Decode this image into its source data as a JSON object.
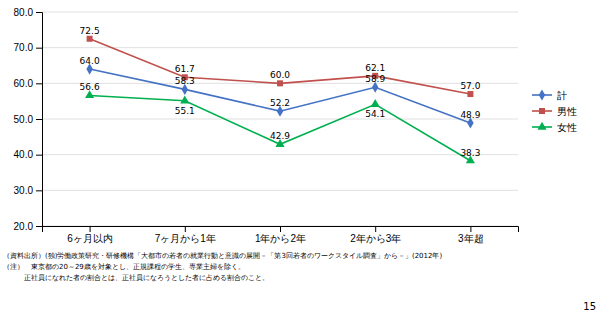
{
  "chart_data": {
    "type": "line",
    "categories": [
      "6ヶ月以内",
      "7ヶ月から1年",
      "1年から2年",
      "2年から3年",
      "3年超"
    ],
    "series": [
      {
        "name": "計",
        "color": "#4472c4",
        "marker": "diamond",
        "values": [
          64.0,
          58.3,
          52.2,
          58.9,
          48.9
        ],
        "value_labels": [
          "64.0",
          "58.3",
          "52.2",
          "58.9",
          "48.9"
        ]
      },
      {
        "name": "男性",
        "color": "#c0504d",
        "marker": "square",
        "values": [
          72.5,
          61.7,
          60.0,
          62.1,
          57.0
        ],
        "value_labels": [
          "72.5",
          "61.7",
          "60.0",
          "62.1",
          "57.0"
        ]
      },
      {
        "name": "女性",
        "color": "#00b050",
        "marker": "triangle",
        "values": [
          56.6,
          55.1,
          42.9,
          54.1,
          38.3
        ],
        "value_labels": [
          "56.6",
          "55.1",
          "42.9",
          "54.1",
          "38.3"
        ]
      }
    ],
    "ylim": [
      20.0,
      80.0
    ],
    "yticks": [
      {
        "value": 20,
        "label": "20.0"
      },
      {
        "value": 30,
        "label": "30.0"
      },
      {
        "value": 40,
        "label": "40.0"
      },
      {
        "value": 50,
        "label": "50.0"
      },
      {
        "value": 60,
        "label": "60.0"
      },
      {
        "value": 70,
        "label": "70.0"
      },
      {
        "value": 80,
        "label": "80.0"
      }
    ],
    "grid": true,
    "legend": "right",
    "data_labels": true,
    "footnotes": [
      "（資料出所）(独)労働政策研究・研修機構「大都市の若者の就業行動と意識の展開－「第3回若者のワークスタイル調査」から－」(2012年)",
      "（注）　東京都の20～29歳を対象とし、正規課程の学生、専業主婦を除く。",
      "　　　正社員になれた者の割合とは、正社員になろうとした者に占める割合のこと。"
    ],
    "page_number": "15"
  }
}
